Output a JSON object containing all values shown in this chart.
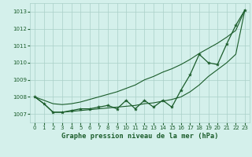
{
  "title": "Graphe pression niveau de la mer (hPa)",
  "bg_color": "#d4f0eb",
  "grid_color": "#aacfc8",
  "line_color": "#1a5c2a",
  "xlim": [
    -0.5,
    23.5
  ],
  "ylim": [
    1006.5,
    1013.5
  ],
  "xticks": [
    0,
    1,
    2,
    3,
    4,
    5,
    6,
    7,
    8,
    9,
    10,
    11,
    12,
    13,
    14,
    15,
    16,
    17,
    18,
    19,
    20,
    21,
    22,
    23
  ],
  "yticks": [
    1007,
    1008,
    1009,
    1010,
    1011,
    1012,
    1013
  ],
  "hours": [
    0,
    1,
    2,
    3,
    4,
    5,
    6,
    7,
    8,
    9,
    10,
    11,
    12,
    13,
    14,
    15,
    16,
    17,
    18,
    19,
    20,
    21,
    22,
    23
  ],
  "pressure_main": [
    1008.0,
    1007.6,
    1007.1,
    1007.1,
    1007.2,
    1007.3,
    1007.3,
    1007.4,
    1007.5,
    1007.3,
    1007.8,
    1007.3,
    1007.8,
    1007.4,
    1007.8,
    1007.4,
    1008.4,
    1009.3,
    1010.5,
    1010.0,
    1009.9,
    1011.1,
    1012.2,
    1013.1
  ],
  "pressure_upper": [
    1008.0,
    1007.8,
    1007.6,
    1007.55,
    1007.6,
    1007.7,
    1007.85,
    1008.0,
    1008.15,
    1008.3,
    1008.5,
    1008.7,
    1009.0,
    1009.2,
    1009.45,
    1009.65,
    1009.9,
    1010.2,
    1010.55,
    1010.85,
    1011.15,
    1011.5,
    1011.9,
    1013.1
  ],
  "pressure_lower": [
    1008.0,
    1007.6,
    1007.1,
    1007.1,
    1007.15,
    1007.2,
    1007.25,
    1007.3,
    1007.35,
    1007.4,
    1007.45,
    1007.5,
    1007.6,
    1007.65,
    1007.75,
    1007.85,
    1008.0,
    1008.3,
    1008.7,
    1009.2,
    1009.6,
    1010.0,
    1010.5,
    1013.1
  ]
}
